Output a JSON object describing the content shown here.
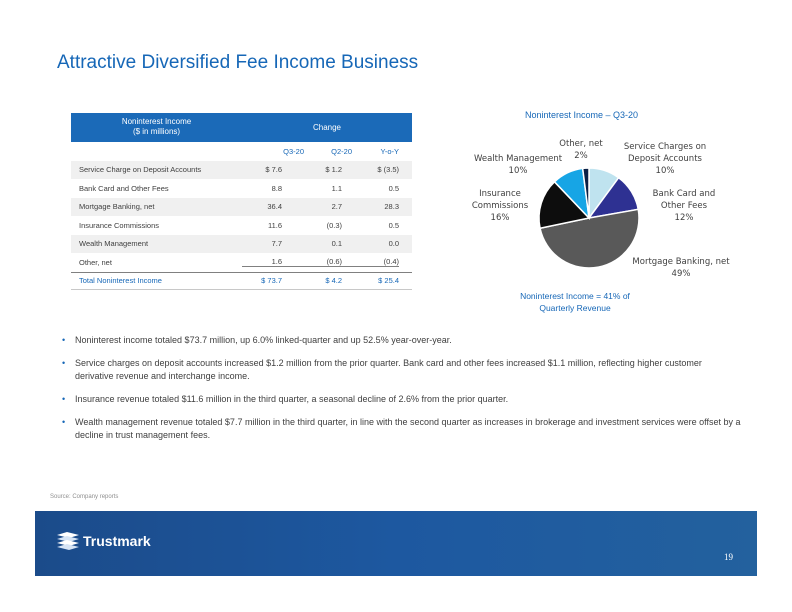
{
  "title": "Attractive Diversified Fee Income Business",
  "table": {
    "header_left_line1": "Noninterest Income",
    "header_left_line2": "($ in millions)",
    "header_right": "Change",
    "columns": [
      "Q3-20",
      "Q2-20",
      "Y-o-Y"
    ],
    "rows": [
      {
        "label": "Service Charge on Deposit Accounts",
        "q3": "$ 7.6",
        "q2": "$ 1.2",
        "yoy": "$ (3.5)"
      },
      {
        "label": "Bank Card and Other Fees",
        "q3": "8.8",
        "q2": "1.1",
        "yoy": "0.5"
      },
      {
        "label": "Mortgage Banking, net",
        "q3": "36.4",
        "q2": "2.7",
        "yoy": "28.3"
      },
      {
        "label": "Insurance Commissions",
        "q3": "11.6",
        "q2": "(0.3)",
        "yoy": "0.5"
      },
      {
        "label": "Wealth Management",
        "q3": "7.7",
        "q2": "0.1",
        "yoy": "0.0"
      },
      {
        "label": "Other, net",
        "q3": "1.6",
        "q2": "(0.6)",
        "yoy": "(0.4)"
      }
    ],
    "total": {
      "label": "Total Noninterest Income",
      "q3": "$ 73.7",
      "q2": "$ 4.2",
      "yoy": "$ 25.4"
    }
  },
  "chart_data": {
    "type": "pie",
    "title": "Noninterest Income – Q3-20",
    "slices": [
      {
        "label": "Service Charges on Deposit Accounts",
        "label_lines": [
          "Service Charges on",
          "Deposit Accounts",
          "10%"
        ],
        "value": 10,
        "color": "#bfe3ef"
      },
      {
        "label": "Bank Card and Other Fees",
        "label_lines": [
          "Bank Card and",
          "Other Fees",
          "12%"
        ],
        "value": 12,
        "color": "#2e3192"
      },
      {
        "label": "Mortgage Banking, net",
        "label_lines": [
          "Mortgage Banking, net",
          "49%"
        ],
        "value": 49,
        "color": "#595959"
      },
      {
        "label": "Insurance Commissions",
        "label_lines": [
          "Insurance",
          "Commissions",
          "16%"
        ],
        "value": 16,
        "color": "#0d0d0d"
      },
      {
        "label": "Wealth Management",
        "label_lines": [
          "Wealth Management",
          "10%"
        ],
        "value": 10,
        "color": "#17a5e5"
      },
      {
        "label": "Other, net",
        "label_lines": [
          "Other, net",
          "2%"
        ],
        "value": 2,
        "color": "#0b1f45"
      }
    ],
    "footnote_line1": "Noninterest Income = 41% of",
    "footnote_line2": "Quarterly Revenue"
  },
  "bullets": [
    "Noninterest income totaled $73.7 million, up 6.0% linked-quarter and up 52.5% year-over-year.",
    "Service charges on deposit accounts increased $1.2 million from the prior quarter. Bank card and other fees increased $1.1 million, reflecting higher customer derivative revenue and interchange income.",
    "Insurance revenue totaled $11.6 million in the third quarter, a seasonal decline of 2.6% from the prior quarter.",
    "Wealth management revenue totaled $7.7 million in the third quarter, in line with the second quarter as increases in brokerage and investment services were offset by a decline in trust management fees."
  ],
  "bullet_glyph": "•",
  "source": "Source: Company reports",
  "footer": {
    "logo_text": "Trustmark",
    "page_number": "19"
  }
}
